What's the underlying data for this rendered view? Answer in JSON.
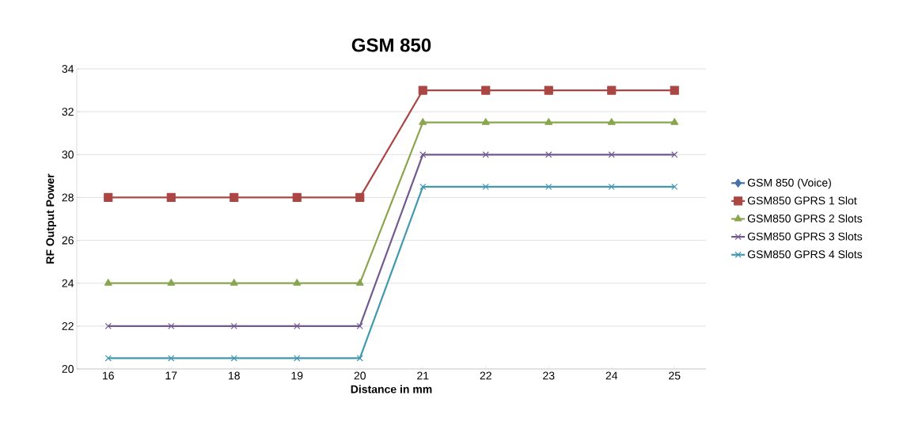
{
  "chart_data": {
    "type": "line",
    "title": "GSM 850",
    "xlabel": "Distance in mm",
    "ylabel": "RF Output Power",
    "categories": [
      "16",
      "17",
      "18",
      "19",
      "20",
      "21",
      "22",
      "23",
      "24",
      "25"
    ],
    "series": [
      {
        "name": "GSM 850 (Voice)",
        "color": "#4572a7",
        "marker": "diamond",
        "values": [
          null,
          null,
          null,
          null,
          null,
          null,
          null,
          null,
          null,
          null
        ]
      },
      {
        "name": "GSM850 GPRS 1 Slot",
        "color": "#aa4643",
        "marker": "square",
        "values": [
          28,
          28,
          28,
          28,
          28,
          33,
          33,
          33,
          33,
          33
        ]
      },
      {
        "name": "GSM850 GPRS 2 Slots",
        "color": "#89a54e",
        "marker": "triangle",
        "values": [
          24,
          24,
          24,
          24,
          24,
          31.5,
          31.5,
          31.5,
          31.5,
          31.5
        ]
      },
      {
        "name": "GSM850 GPRS 3 Slots",
        "color": "#71588f",
        "marker": "cross",
        "values": [
          22,
          22,
          22,
          22,
          22,
          30,
          30,
          30,
          30,
          30
        ]
      },
      {
        "name": "GSM850 GPRS 4 Slots",
        "color": "#4198af",
        "marker": "cross",
        "values": [
          20.5,
          20.5,
          20.5,
          20.5,
          20.5,
          28.5,
          28.5,
          28.5,
          28.5,
          28.5
        ]
      }
    ],
    "ylim": [
      20,
      34
    ],
    "yticks": [
      20,
      22,
      24,
      26,
      28,
      30,
      32,
      34
    ],
    "grid": "y",
    "legend": "right",
    "line_style": "solid"
  }
}
